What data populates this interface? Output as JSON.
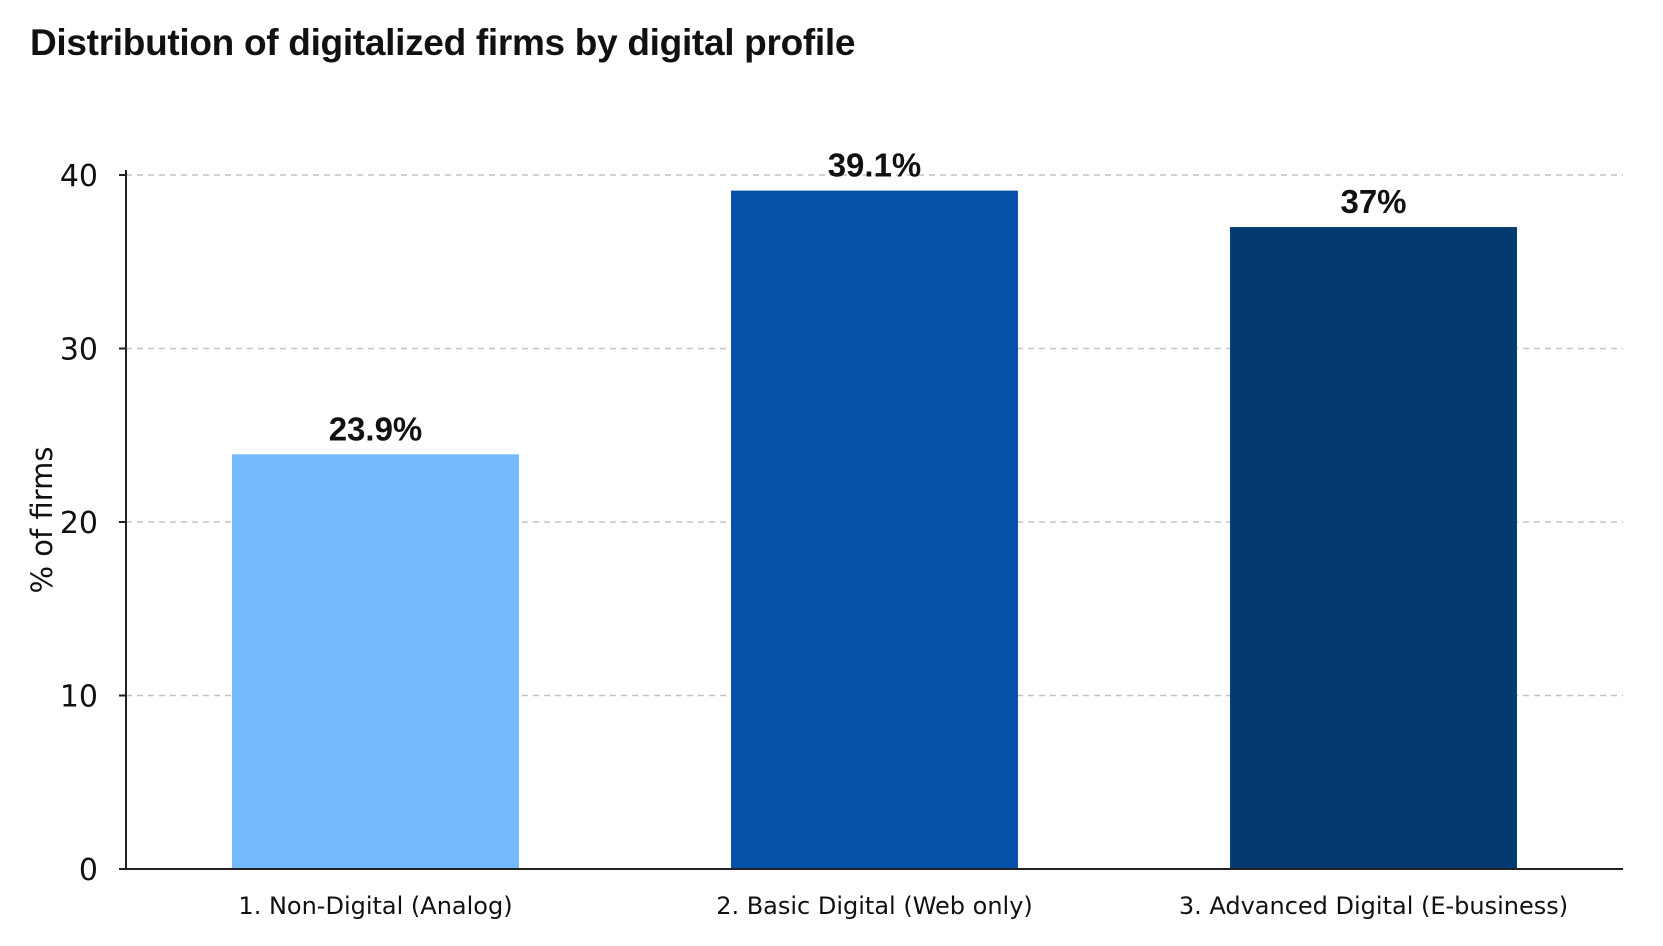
{
  "chart_data": {
    "type": "bar",
    "title": "Distribution of digitalized firms by digital profile",
    "xlabel": "",
    "ylabel": "% of firms",
    "categories": [
      "1. Non-Digital (Analog)",
      "2. Basic Digital (Web only)",
      "3. Advanced Digital (E-business)"
    ],
    "values": [
      23.9,
      39.1,
      37
    ],
    "data_labels": [
      "23.9%",
      "39.1%",
      "37%"
    ],
    "colors": [
      "#74b9fb",
      "#0550a8",
      "#033a72"
    ],
    "ylim": [
      0,
      40
    ],
    "yticks": [
      0,
      10,
      20,
      30,
      40
    ],
    "grid": "horizontal dashed",
    "legend": "none"
  }
}
